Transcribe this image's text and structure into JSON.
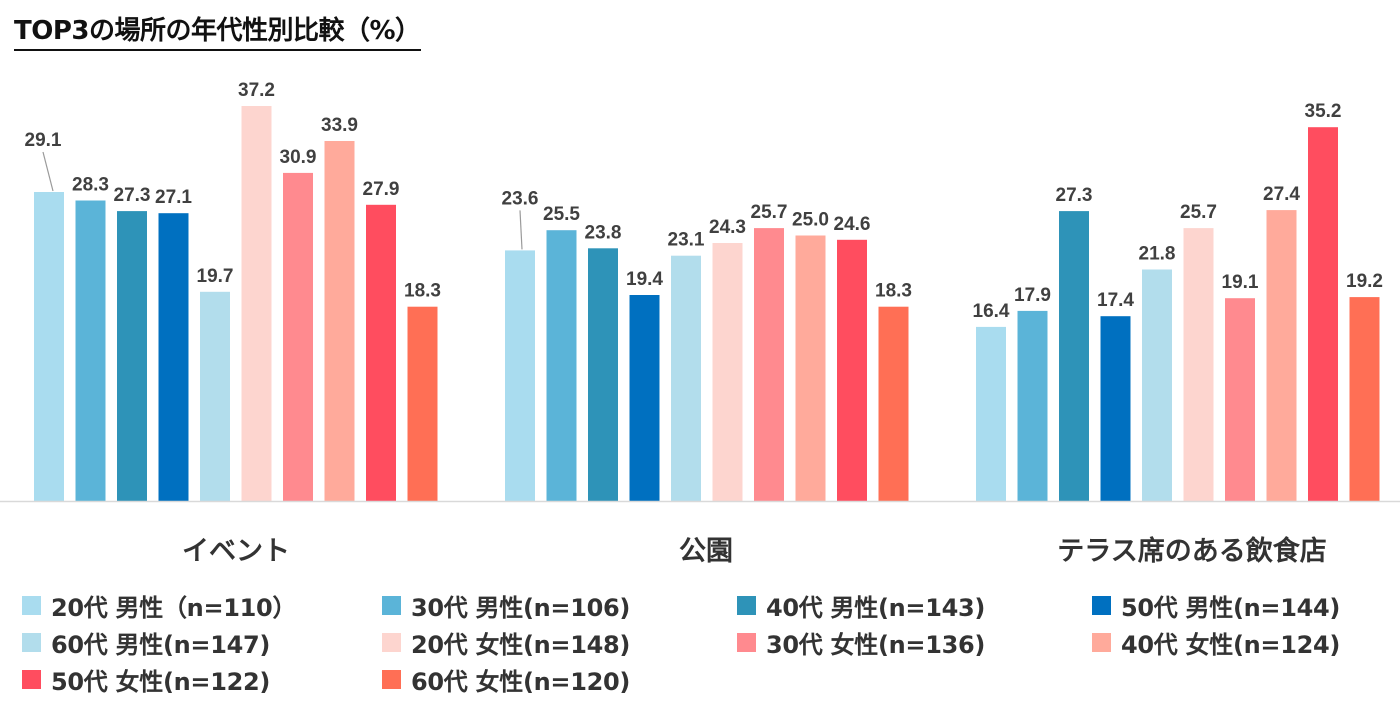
{
  "chart_data": {
    "type": "bar",
    "title": "TOP3の場所の年代性別比較（%）",
    "categories": [
      "イベント",
      "公園",
      "テラス席のある飲食店"
    ],
    "series": [
      {
        "name": "20代 男性（n=110）",
        "color": "#A9DCEF",
        "values": [
          29.1,
          23.6,
          16.4
        ]
      },
      {
        "name": "30代 男性(n=106)",
        "color": "#5BB4D8",
        "values": [
          28.3,
          25.5,
          17.9
        ]
      },
      {
        "name": "40代 男性(n=143)",
        "color": "#2E93B8",
        "values": [
          27.3,
          23.8,
          27.3
        ]
      },
      {
        "name": "50代 男性(n=144)",
        "color": "#0070C0",
        "values": [
          27.1,
          19.4,
          17.4
        ]
      },
      {
        "name": "60代 男性(n=147)",
        "color": "#B2DDEC",
        "values": [
          19.7,
          23.1,
          21.8
        ]
      },
      {
        "name": "20代 女性(n=148)",
        "color": "#FDD5CF",
        "values": [
          37.2,
          24.3,
          25.7
        ]
      },
      {
        "name": "30代 女性(n=136)",
        "color": "#FF8A8F",
        "values": [
          30.9,
          25.7,
          19.1
        ]
      },
      {
        "name": "40代 女性(n=124)",
        "color": "#FFAA9B",
        "values": [
          33.9,
          25.0,
          27.4
        ]
      },
      {
        "name": "50代 女性(n=122)",
        "color": "#FF4D5F",
        "values": [
          27.9,
          24.6,
          35.2
        ]
      },
      {
        "name": "60代 女性(n=120)",
        "color": "#FF6F55",
        "values": [
          18.3,
          18.3,
          19.2
        ]
      }
    ],
    "ylim": [
      0,
      37.2
    ],
    "grid": false,
    "legend_position": "bottom",
    "xlabel": "",
    "ylabel": ""
  }
}
